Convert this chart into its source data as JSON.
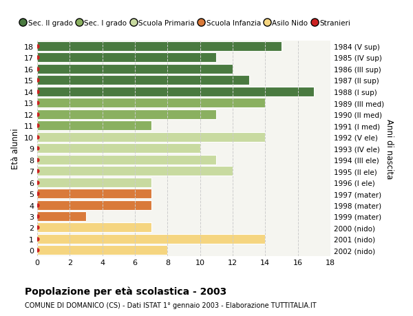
{
  "ages": [
    0,
    1,
    2,
    3,
    4,
    5,
    6,
    7,
    8,
    9,
    10,
    11,
    12,
    13,
    14,
    15,
    16,
    17,
    18
  ],
  "right_labels": [
    "2002 (nido)",
    "2001 (nido)",
    "2000 (nido)",
    "1999 (mater)",
    "1998 (mater)",
    "1997 (mater)",
    "1996 (I ele)",
    "1995 (II ele)",
    "1994 (III ele)",
    "1993 (IV ele)",
    "1992 (V ele)",
    "1991 (I med)",
    "1990 (II med)",
    "1989 (III med)",
    "1988 (I sup)",
    "1987 (II sup)",
    "1986 (III sup)",
    "1985 (IV sup)",
    "1984 (V sup)"
  ],
  "bar_values": [
    8,
    14,
    7,
    3,
    7,
    7,
    7,
    12,
    11,
    10,
    14,
    7,
    11,
    14,
    17,
    13,
    12,
    11,
    15
  ],
  "bar_colors": [
    "#f5d580",
    "#f5d580",
    "#f5d580",
    "#d97a3a",
    "#d97a3a",
    "#d97a3a",
    "#c8daa0",
    "#c8daa0",
    "#c8daa0",
    "#c8daa0",
    "#c8daa0",
    "#8ab060",
    "#8ab060",
    "#8ab060",
    "#4a7a40",
    "#4a7a40",
    "#4a7a40",
    "#4a7a40",
    "#4a7a40"
  ],
  "title_bold": "Popolazione per età scolastica - 2003",
  "subtitle": "COMUNE DI DOMANICO (CS) - Dati ISTAT 1° gennaio 2003 - Elaborazione TUTTITALIA.IT",
  "ylabel": "Età alunni",
  "right_ylabel": "Anni di nascita",
  "xlim": [
    0,
    18
  ],
  "bg_color": "#ffffff",
  "plot_bg_color": "#f5f5f0",
  "grid_color": "#cccccc",
  "legend_labels": [
    "Sec. II grado",
    "Sec. I grado",
    "Scuola Primaria",
    "Scuola Infanzia",
    "Asilo Nido",
    "Stranieri"
  ],
  "legend_colors": [
    "#4a7a40",
    "#8ab060",
    "#c8daa0",
    "#d97a3a",
    "#f5d580",
    "#cc2222"
  ]
}
